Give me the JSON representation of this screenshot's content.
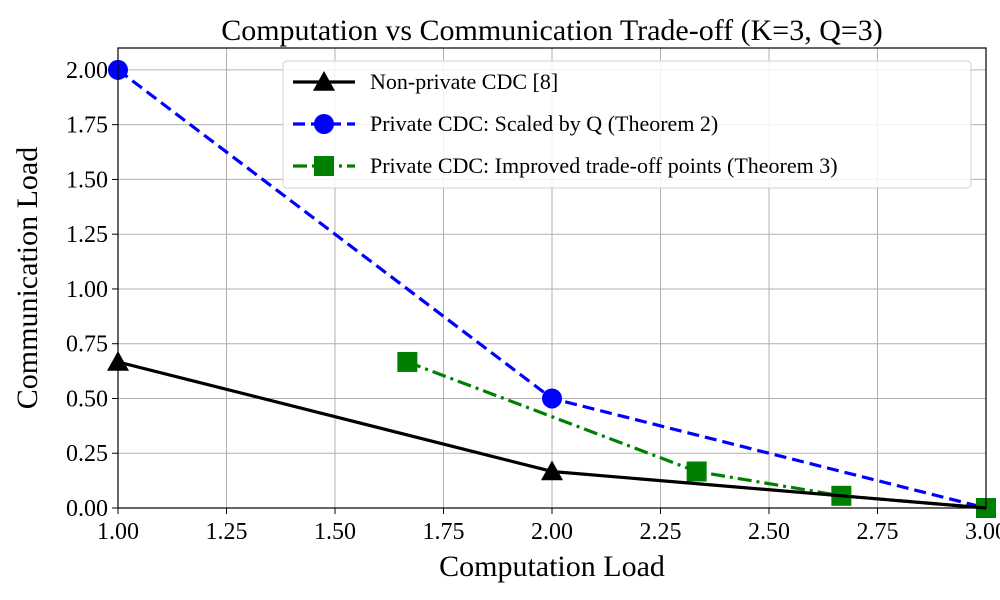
{
  "chart_data": {
    "type": "line",
    "title": "Computation vs Communication Trade-off (K=3, Q=3)",
    "xlabel": "Computation Load",
    "ylabel": "Communication Load",
    "xlim": [
      1.0,
      3.0
    ],
    "ylim": [
      0.0,
      2.1
    ],
    "xticks": [
      1.0,
      1.25,
      1.5,
      1.75,
      2.0,
      2.25,
      2.5,
      2.75,
      3.0
    ],
    "xtick_labels": [
      "1.00",
      "1.25",
      "1.50",
      "1.75",
      "2.00",
      "2.25",
      "2.50",
      "2.75",
      "3.00"
    ],
    "yticks": [
      0.0,
      0.25,
      0.5,
      0.75,
      1.0,
      1.25,
      1.5,
      1.75,
      2.0
    ],
    "ytick_labels": [
      "0.00",
      "0.25",
      "0.50",
      "0.75",
      "1.00",
      "1.25",
      "1.50",
      "1.75",
      "2.00"
    ],
    "grid": true,
    "legend_position": "top-right",
    "series": [
      {
        "name": "Non-private CDC [8]",
        "color": "#000000",
        "linestyle": "solid",
        "marker": "triangle",
        "x": [
          1.0,
          2.0,
          3.0
        ],
        "y": [
          0.6667,
          0.1667,
          0.0
        ],
        "marker_x": [
          1.0,
          2.0
        ],
        "marker_y": [
          0.6667,
          0.1667
        ]
      },
      {
        "name": "Private CDC: Scaled by Q (Theorem 2)",
        "color": "#0000ff",
        "linestyle": "dashed",
        "marker": "circle",
        "x": [
          1.0,
          2.0,
          3.0
        ],
        "y": [
          2.0,
          0.5,
          0.0
        ],
        "marker_x": [
          1.0,
          2.0
        ],
        "marker_y": [
          2.0,
          0.5
        ]
      },
      {
        "name": "Private CDC: Improved trade-off points (Theorem 3)",
        "color": "#008000",
        "linestyle": "dashdot",
        "marker": "square",
        "x": [
          1.6667,
          2.3333,
          2.6667,
          3.0
        ],
        "y": [
          0.6667,
          0.1667,
          0.0556,
          0.0
        ],
        "marker_x": [
          1.6667,
          2.3333,
          2.6667,
          3.0
        ],
        "marker_y": [
          0.6667,
          0.1667,
          0.0556,
          0.0
        ]
      }
    ]
  }
}
